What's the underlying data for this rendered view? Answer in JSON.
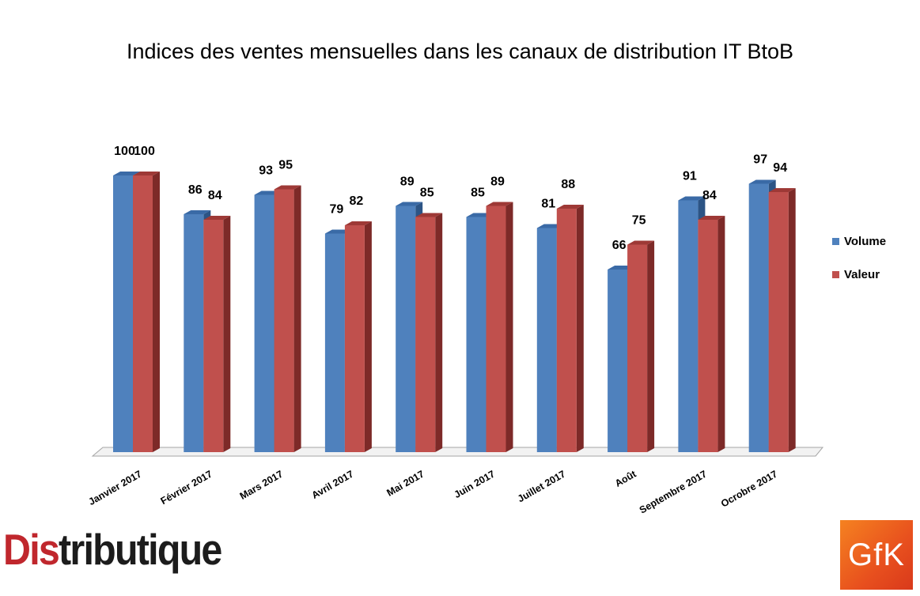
{
  "chart_data": {
    "type": "bar",
    "title": "Indices des ventes mensuelles dans les canaux de distribution IT BtoB",
    "categories": [
      "Janvier 2017",
      "Février 2017",
      "Mars 2017",
      "Avril 2017",
      "Mai 2017",
      "Juin 2017",
      "Juillet 2017",
      "Août",
      "Septembre 2017",
      "Ocrobre 2017"
    ],
    "series": [
      {
        "name": "Volume",
        "values": [
          100,
          86,
          93,
          79,
          89,
          85,
          81,
          66,
          91,
          97
        ],
        "color": "#4f81bd"
      },
      {
        "name": "Valeur",
        "values": [
          100,
          84,
          95,
          82,
          85,
          89,
          88,
          75,
          84,
          94
        ],
        "color": "#c0504d"
      }
    ],
    "ylim": [
      0,
      100
    ],
    "grid": false,
    "legend_position": "right",
    "style": "3d-clustered-column"
  },
  "logos": {
    "distributique_prefix": "Dis",
    "distributique_rest": "tributique",
    "gfk": "GfK"
  }
}
